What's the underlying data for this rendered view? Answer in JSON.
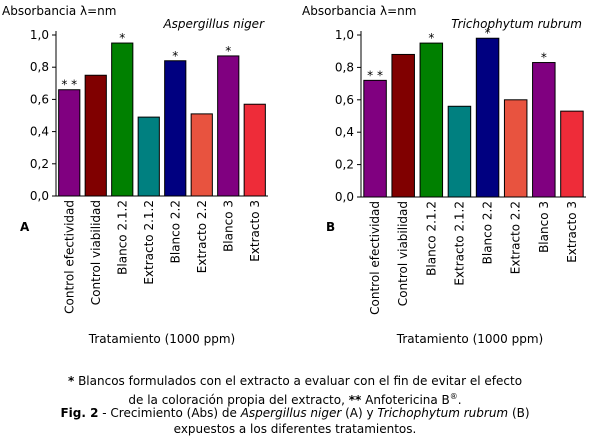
{
  "chart_data": [
    {
      "type": "bar",
      "panel_letter": "A",
      "title": "Aspergillus niger",
      "ylabel": "Absorbancia λ=nm",
      "xlabel": "Tratamiento (1000 ppm)",
      "ylim": [
        0,
        1.0
      ],
      "yticks": [
        "0,0",
        "0,2",
        "0,4",
        "0,6",
        "0,8",
        "1,0"
      ],
      "grid": false,
      "categories": [
        "Control efectividad",
        "Control viabilidad",
        "Blanco 2.1.2",
        "Extracto 2.1.2",
        "Blanco 2.2",
        "Extracto 2.2",
        "Blanco 3",
        "Extracto 3"
      ],
      "values": [
        0.66,
        0.75,
        0.95,
        0.49,
        0.84,
        0.51,
        0.87,
        0.57
      ],
      "colors": [
        "#800080",
        "#800000",
        "#008000",
        "#008080",
        "#000080",
        "#E8533F",
        "#800080",
        "#EE2C39"
      ],
      "annotations": [
        "* *",
        "",
        "*",
        "",
        "*",
        "",
        "*",
        ""
      ]
    },
    {
      "type": "bar",
      "panel_letter": "B",
      "title": "Trichophytum rubrum",
      "ylabel": "Absorbancia λ=nm",
      "xlabel": "Tratamiento (1000 ppm)",
      "ylim": [
        0,
        1.0
      ],
      "yticks": [
        "0,0",
        "0,2",
        "0,4",
        "0,6",
        "0,8",
        "1,0"
      ],
      "grid": false,
      "categories": [
        "Control efectividad",
        "Control viabilidad",
        "Blanco 2.1.2",
        "Extracto 2.1.2",
        "Blanco 2.2",
        "Extracto 2.2",
        "Blanco 3",
        "Extracto 3"
      ],
      "values": [
        0.72,
        0.88,
        0.95,
        0.56,
        0.98,
        0.6,
        0.83,
        0.53
      ],
      "colors": [
        "#800080",
        "#800000",
        "#008000",
        "#008080",
        "#000080",
        "#E8533F",
        "#800080",
        "#EE2C39"
      ],
      "annotations": [
        "* *",
        "",
        "*",
        "",
        "*",
        "",
        "*",
        ""
      ]
    }
  ],
  "caption": {
    "line1_star": "*",
    "line1": " Blancos formulados con el extracto a evaluar con el fin de evitar el efecto",
    "line2a": "de la coloración propia del extracto, ",
    "line2_stars": "**",
    "line2b": " Anfotericina B",
    "line2_sup": "®",
    "line2_end": ".",
    "fig_label": "Fig. 2",
    "line3a": " - Crecimiento (Abs) de ",
    "species_a": "Aspergillus niger",
    "line3b": " (A) y ",
    "species_b": "Trichophytum rubrum",
    "line3c": " (B)",
    "line4": "expuestos a los diferentes tratamientos."
  }
}
